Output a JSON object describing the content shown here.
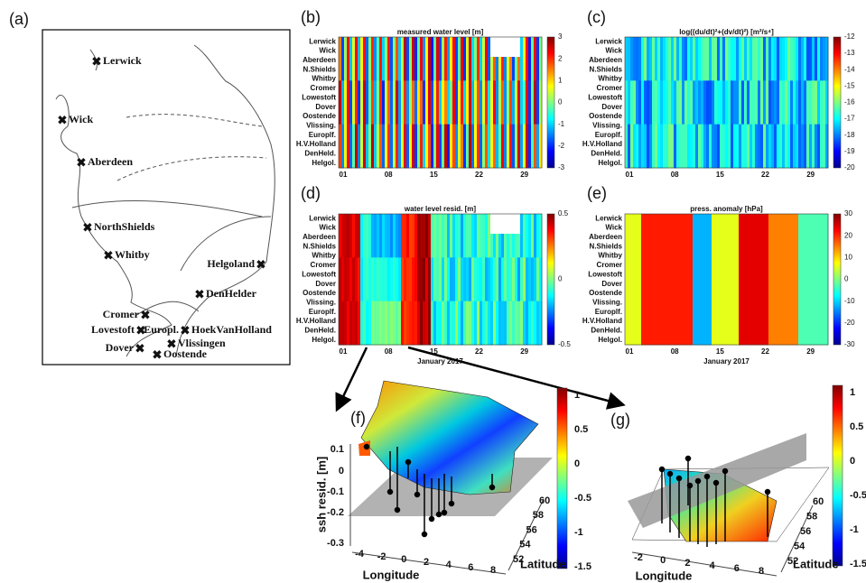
{
  "figure": {
    "panel_labels": {
      "a": "(a)",
      "b": "(b)",
      "c": "(c)",
      "d": "(d)",
      "e": "(e)",
      "f": "(f)",
      "g": "(g)"
    },
    "map_stations": [
      "Lerwick",
      "Wick",
      "Aberdeen",
      "NorthShields",
      "Whitby",
      "Helgoland",
      "DenHelder",
      "Cromer",
      "Lovestoft",
      "Europl.",
      "HoekVanHolland",
      "Vlissingen",
      "Dover",
      "Oostende"
    ],
    "station_axis": [
      "Lerwick",
      "Wick",
      "Aberdeen",
      "N.Shields",
      "Whitby",
      "Cromer",
      "Lowestoft",
      "Dover",
      "Oostende",
      "Vlissing.",
      "Europlf.",
      "H.V.Holland",
      "DenHeld.",
      "Helgol."
    ],
    "time_ticks": [
      "01",
      "08",
      "15",
      "22",
      "29"
    ],
    "time_label": "January 2017",
    "panels": {
      "b": {
        "title": "measured water level [m]",
        "colorbar_ticks": [
          3,
          2,
          1,
          0,
          -1,
          -2,
          -3
        ]
      },
      "c": {
        "title": "log((du/dt)²+(dv/dt)²) [m²/s⁴]",
        "colorbar_ticks": [
          -12,
          -13,
          -14,
          -15,
          -16,
          -17,
          -18,
          -19,
          -20
        ]
      },
      "d": {
        "title": "water level resid. [m]",
        "colorbar_ticks": [
          0.5,
          0,
          -0.5
        ]
      },
      "e": {
        "title": "press. anomaly [hPa]",
        "colorbar_ticks": [
          30,
          20,
          10,
          0,
          -10,
          -20,
          -30
        ]
      },
      "f": {
        "zlabel": "ssh resid. [m]",
        "zticks": [
          0.1,
          0,
          -0.1,
          -0.2,
          -0.3
        ],
        "xlabel": "Longitude",
        "xticks": [
          -4,
          -2,
          0,
          2,
          4,
          6,
          8
        ],
        "ylabel": "Latitude",
        "yticks": [
          52,
          54,
          56,
          58,
          60
        ],
        "colorbar_ticks": [
          1,
          0.5,
          0,
          -0.5,
          -1,
          -1.5
        ]
      },
      "g": {
        "xlabel": "Longitude",
        "xticks": [
          -2,
          0,
          2,
          4,
          6,
          8
        ],
        "ylabel": "Latitude",
        "yticks": [
          52,
          54,
          56,
          58,
          60
        ],
        "colorbar_ticks": [
          1,
          0.5,
          0,
          -0.5,
          -1,
          -1.5
        ]
      }
    }
  }
}
